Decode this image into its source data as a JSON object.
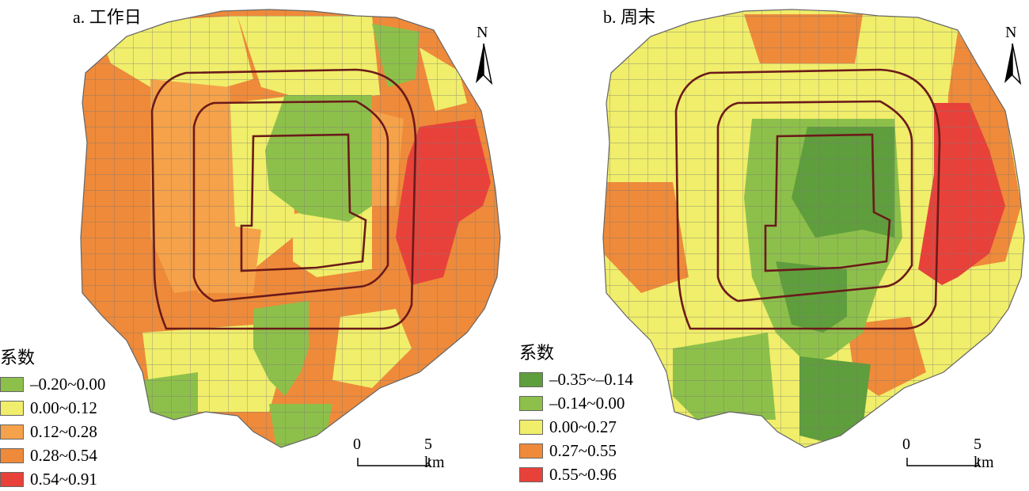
{
  "colors": {
    "dark_green": "#5f9e3c",
    "green": "#8dc04a",
    "yellow": "#f0ee6a",
    "orange_light": "#f5a24a",
    "orange": "#ee8a3a",
    "red": "#e8413a",
    "ring_road": "#6b1a1a",
    "district_border": "#777777"
  },
  "panels": [
    {
      "title": "a. 工作日",
      "legend_title": "系数",
      "legend": [
        {
          "label": "–0.20~0.00",
          "color": "#8dc04a"
        },
        {
          "label": "0.00~0.12",
          "color": "#f0ee6a"
        },
        {
          "label": "0.12~0.28",
          "color": "#f5a24a"
        },
        {
          "label": "0.28~0.54",
          "color": "#ee8a3a"
        },
        {
          "label": "0.54~0.91",
          "color": "#e8413a"
        }
      ],
      "north_label": "N",
      "scale_start": "0",
      "scale_end": "5 km"
    },
    {
      "title": "b. 周末",
      "legend_title": "系数",
      "legend": [
        {
          "label": "–0.35~–0.14",
          "color": "#5f9e3c"
        },
        {
          "label": "–0.14~0.00",
          "color": "#8dc04a"
        },
        {
          "label": "0.00~0.27",
          "color": "#f0ee6a"
        },
        {
          "label": "0.27~0.55",
          "color": "#ee8a3a"
        },
        {
          "label": "0.55~0.96",
          "color": "#e8413a"
        }
      ],
      "north_label": "N",
      "scale_start": "0",
      "scale_end": "5 km"
    }
  ]
}
